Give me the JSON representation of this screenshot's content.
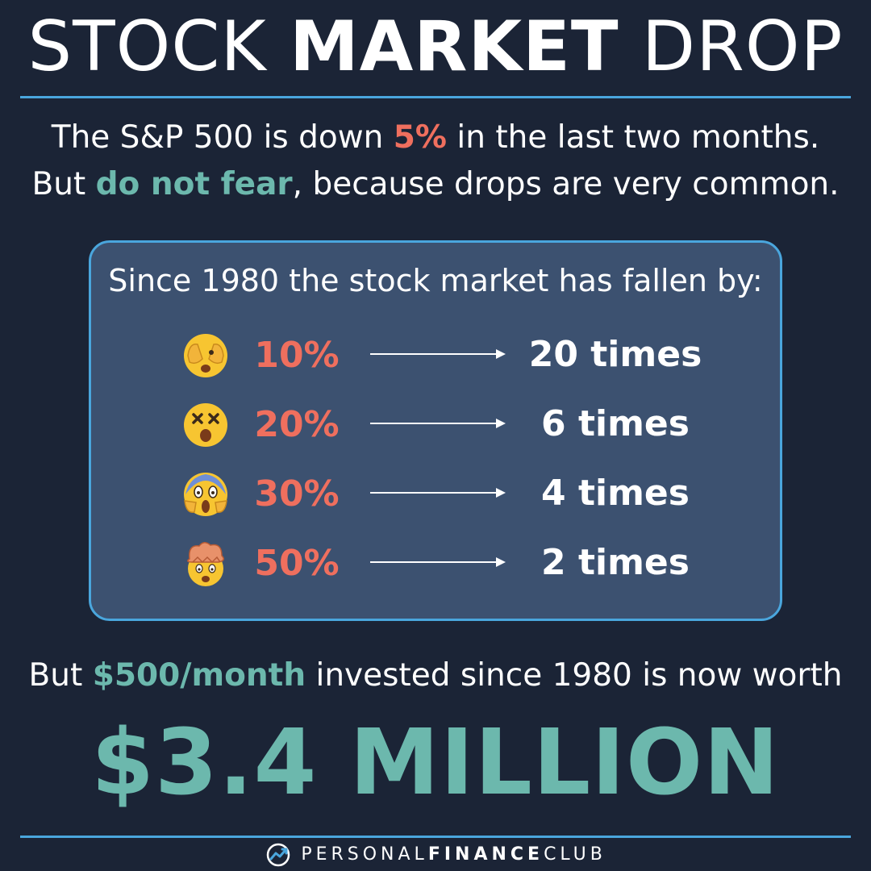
{
  "title": {
    "part1": "STOCK ",
    "part2": "MARKET",
    "part3": " DROP"
  },
  "intro": {
    "line1_pre": "The S&P 500 is down ",
    "line1_accent": "5%",
    "line1_post": " in the last two months.",
    "line2_pre": "But ",
    "line2_accent": "do not fear",
    "line2_post": ", because drops are very common."
  },
  "panel": {
    "heading": "Since 1980 the stock market has fallen by:",
    "rows": [
      {
        "emoji": "see-no-evil-face-icon",
        "percent": "10%",
        "times": "20 times"
      },
      {
        "emoji": "dizzy-face-icon",
        "percent": "20%",
        "times": "6 times"
      },
      {
        "emoji": "screaming-face-icon",
        "percent": "30%",
        "times": "4 times"
      },
      {
        "emoji": "exploding-head-icon",
        "percent": "50%",
        "times": "2 times"
      }
    ]
  },
  "worth": {
    "pre": "But ",
    "accent": "$500/month",
    "post": " invested since 1980 is now worth"
  },
  "big_value": "$3.4 MILLION",
  "footer": {
    "brand_light": "PERSONAL",
    "brand_bold": "FINANCE",
    "brand_light2": "CLUB"
  },
  "colors": {
    "background": "#1b2436",
    "panel": "#3c5170",
    "accent_blue": "#4aa6dd",
    "accent_red": "#ef6f5e",
    "accent_teal": "#6cb8ad"
  }
}
